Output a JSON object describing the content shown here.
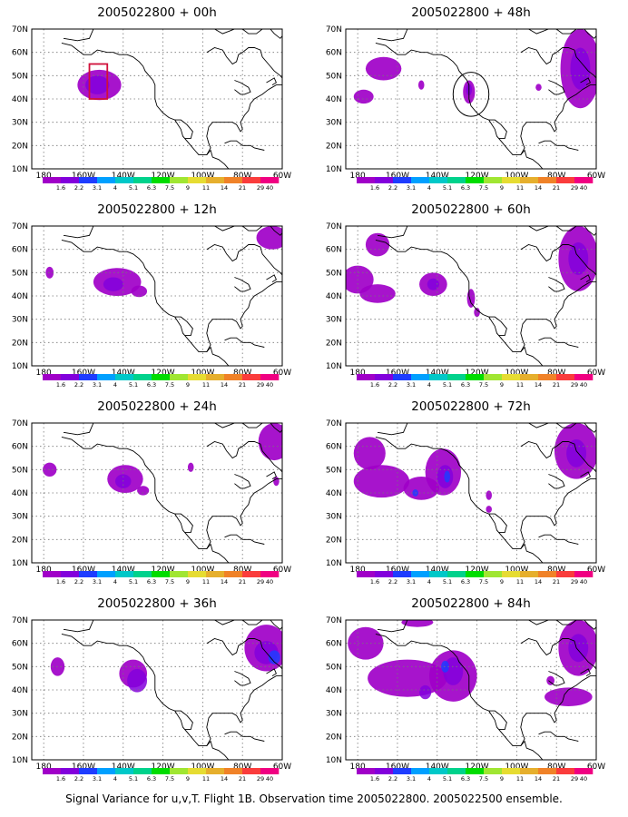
{
  "figure": {
    "caption": "Signal Variance for u,v,T. Flight 1B. Observation time 2005022800. 2005022500 ensemble."
  },
  "axes": {
    "lon_labels": [
      "180",
      "160W",
      "140W",
      "120W",
      "100W",
      "80W",
      "60W"
    ],
    "lon_values": [
      180,
      200,
      220,
      240,
      260,
      280,
      300
    ],
    "lat_labels": [
      "10N",
      "20N",
      "30N",
      "40N",
      "50N",
      "60N",
      "70N"
    ],
    "lat_values": [
      10,
      20,
      30,
      40,
      50,
      60,
      70
    ],
    "lon_range": [
      174,
      300
    ],
    "lat_range": [
      10,
      70
    ],
    "grid": true,
    "grid_style": "dotted"
  },
  "colorbar": {
    "levels": [
      "1.6",
      "2.2",
      "3.1",
      "4",
      "5.1",
      "6.3",
      "7.5",
      "9",
      "11",
      "14",
      "21",
      "29",
      "40"
    ],
    "colors": [
      "#a000c8",
      "#8200dc",
      "#1e3cff",
      "#00a0ff",
      "#00c8c8",
      "#00d28c",
      "#00dc00",
      "#a0e632",
      "#e6dc32",
      "#e6af2d",
      "#f08228",
      "#fa3c3c",
      "#f00082"
    ]
  },
  "panels": [
    {
      "title": "2005022800 + 00h",
      "col": 0,
      "row": 0,
      "blobs": [
        {
          "lon": 208,
          "lat": 46,
          "rx": 11,
          "ry": 6.5,
          "c": 0
        },
        {
          "lon": 207,
          "lat": 46,
          "rx": 6,
          "ry": 4,
          "c": 1
        }
      ],
      "marks": [
        {
          "type": "box",
          "lon0": 203,
          "lat0": 40,
          "lon1": 212,
          "lat1": 55
        }
      ]
    },
    {
      "title": "2005022800 + 12h",
      "col": 0,
      "row": 1,
      "blobs": [
        {
          "lon": 183,
          "lat": 50,
          "rx": 2,
          "ry": 2.5,
          "c": 0
        },
        {
          "lon": 217,
          "lat": 46,
          "rx": 12,
          "ry": 6,
          "c": 0
        },
        {
          "lon": 215,
          "lat": 45,
          "rx": 5,
          "ry": 3,
          "c": 1
        },
        {
          "lon": 228,
          "lat": 42,
          "rx": 4,
          "ry": 2.5,
          "c": 0
        },
        {
          "lon": 295,
          "lat": 65,
          "rx": 8,
          "ry": 5,
          "c": 0
        }
      ],
      "marks": []
    },
    {
      "title": "2005022800 + 24h",
      "col": 0,
      "row": 2,
      "blobs": [
        {
          "lon": 183,
          "lat": 50,
          "rx": 3.5,
          "ry": 3,
          "c": 0
        },
        {
          "lon": 221,
          "lat": 46,
          "rx": 9,
          "ry": 6,
          "c": 0
        },
        {
          "lon": 220,
          "lat": 45,
          "rx": 4,
          "ry": 3,
          "c": 1
        },
        {
          "lon": 230,
          "lat": 41,
          "rx": 3,
          "ry": 2,
          "c": 0
        },
        {
          "lon": 254,
          "lat": 51,
          "rx": 1.5,
          "ry": 2,
          "c": 0
        },
        {
          "lon": 296,
          "lat": 62,
          "rx": 8,
          "ry": 8,
          "c": 0
        },
        {
          "lon": 297,
          "lat": 45,
          "rx": 1.5,
          "ry": 2,
          "c": 0
        }
      ],
      "marks": []
    },
    {
      "title": "2005022800 + 36h",
      "col": 0,
      "row": 3,
      "blobs": [
        {
          "lon": 187,
          "lat": 50,
          "rx": 3.5,
          "ry": 4,
          "c": 0
        },
        {
          "lon": 225,
          "lat": 47,
          "rx": 7,
          "ry": 6,
          "c": 0
        },
        {
          "lon": 227,
          "lat": 44,
          "rx": 5,
          "ry": 5,
          "c": 1
        },
        {
          "lon": 292,
          "lat": 58,
          "rx": 11,
          "ry": 10,
          "c": 0
        },
        {
          "lon": 292,
          "lat": 56,
          "rx": 6,
          "ry": 5,
          "c": 1
        },
        {
          "lon": 296,
          "lat": 54,
          "rx": 3,
          "ry": 3,
          "c": 2
        }
      ],
      "marks": []
    },
    {
      "title": "2005022800 + 48h",
      "col": 1,
      "row": 0,
      "blobs": [
        {
          "lon": 183,
          "lat": 41,
          "rx": 5,
          "ry": 3,
          "c": 0
        },
        {
          "lon": 193,
          "lat": 53,
          "rx": 9,
          "ry": 5,
          "c": 0
        },
        {
          "lon": 212,
          "lat": 46,
          "rx": 1.5,
          "ry": 2,
          "c": 0
        },
        {
          "lon": 236,
          "lat": 43,
          "rx": 3,
          "ry": 5,
          "c": 0
        },
        {
          "lon": 236,
          "lat": 44,
          "rx": 1.5,
          "ry": 2.5,
          "c": 1
        },
        {
          "lon": 271,
          "lat": 45,
          "rx": 1.5,
          "ry": 1.5,
          "c": 0
        },
        {
          "lon": 292,
          "lat": 53,
          "rx": 10,
          "ry": 17,
          "c": 0
        },
        {
          "lon": 292,
          "lat": 53,
          "rx": 5,
          "ry": 9,
          "c": 1
        }
      ],
      "marks": [
        {
          "type": "circle",
          "lon": 237,
          "lat": 42,
          "r": 9
        }
      ]
    },
    {
      "title": "2005022800 + 60h",
      "col": 1,
      "row": 1,
      "blobs": [
        {
          "lon": 190,
          "lat": 62,
          "rx": 6,
          "ry": 5,
          "c": 0
        },
        {
          "lon": 180,
          "lat": 47,
          "rx": 8,
          "ry": 6,
          "c": 0
        },
        {
          "lon": 190,
          "lat": 41,
          "rx": 9,
          "ry": 4,
          "c": 0
        },
        {
          "lon": 218,
          "lat": 45,
          "rx": 7,
          "ry": 5,
          "c": 0
        },
        {
          "lon": 218,
          "lat": 45,
          "rx": 3,
          "ry": 2.5,
          "c": 1
        },
        {
          "lon": 237,
          "lat": 39,
          "rx": 2,
          "ry": 4,
          "c": 0
        },
        {
          "lon": 240,
          "lat": 33,
          "rx": 1.5,
          "ry": 2,
          "c": 0
        },
        {
          "lon": 291,
          "lat": 56,
          "rx": 10,
          "ry": 14,
          "c": 0
        },
        {
          "lon": 291,
          "lat": 56,
          "rx": 5,
          "ry": 7,
          "c": 1
        }
      ],
      "marks": []
    },
    {
      "title": "2005022800 + 72h",
      "col": 1,
      "row": 2,
      "blobs": [
        {
          "lon": 186,
          "lat": 57,
          "rx": 8,
          "ry": 7,
          "c": 0
        },
        {
          "lon": 192,
          "lat": 45,
          "rx": 14,
          "ry": 7,
          "c": 0
        },
        {
          "lon": 212,
          "lat": 42,
          "rx": 9,
          "ry": 5,
          "c": 0
        },
        {
          "lon": 223,
          "lat": 49,
          "rx": 9,
          "ry": 10,
          "c": 0
        },
        {
          "lon": 224,
          "lat": 47,
          "rx": 4,
          "ry": 5,
          "c": 1
        },
        {
          "lon": 225,
          "lat": 47,
          "rx": 1.5,
          "ry": 2.5,
          "c": 2
        },
        {
          "lon": 209,
          "lat": 40,
          "rx": 1.5,
          "ry": 1.5,
          "c": 2
        },
        {
          "lon": 246,
          "lat": 39,
          "rx": 1.5,
          "ry": 2,
          "c": 0
        },
        {
          "lon": 246,
          "lat": 33,
          "rx": 1.5,
          "ry": 1.5,
          "c": 0
        },
        {
          "lon": 290,
          "lat": 58,
          "rx": 11,
          "ry": 12,
          "c": 0
        },
        {
          "lon": 290,
          "lat": 57,
          "rx": 5,
          "ry": 6,
          "c": 1
        }
      ],
      "marks": []
    },
    {
      "title": "2005022800 + 84h",
      "col": 1,
      "row": 3,
      "blobs": [
        {
          "lon": 184,
          "lat": 60,
          "rx": 9,
          "ry": 7,
          "c": 0
        },
        {
          "lon": 205,
          "lat": 45,
          "rx": 20,
          "ry": 8,
          "c": 0
        },
        {
          "lon": 228,
          "lat": 46,
          "rx": 12,
          "ry": 11,
          "c": 0
        },
        {
          "lon": 228,
          "lat": 48,
          "rx": 5,
          "ry": 6,
          "c": 1
        },
        {
          "lon": 224,
          "lat": 50,
          "rx": 2,
          "ry": 2.5,
          "c": 2
        },
        {
          "lon": 214,
          "lat": 39,
          "rx": 3,
          "ry": 3,
          "c": 1
        },
        {
          "lon": 210,
          "lat": 69,
          "rx": 8,
          "ry": 2,
          "c": 0
        },
        {
          "lon": 291,
          "lat": 58,
          "rx": 10,
          "ry": 12,
          "c": 0
        },
        {
          "lon": 291,
          "lat": 58,
          "rx": 5,
          "ry": 6,
          "c": 1
        },
        {
          "lon": 277,
          "lat": 44,
          "rx": 2,
          "ry": 2,
          "c": 0
        },
        {
          "lon": 286,
          "lat": 37,
          "rx": 12,
          "ry": 4,
          "c": 0
        }
      ],
      "marks": []
    }
  ],
  "coastlines": [
    [
      [
        190,
        66
      ],
      [
        197,
        65
      ],
      [
        203,
        66
      ],
      [
        205,
        70
      ]
    ],
    [
      [
        189,
        64
      ],
      [
        194,
        63
      ],
      [
        197,
        61
      ],
      [
        200,
        59
      ],
      [
        204,
        59
      ],
      [
        207,
        61
      ],
      [
        212,
        60
      ],
      [
        215,
        60
      ],
      [
        218,
        59
      ],
      [
        222,
        59
      ],
      [
        225,
        58
      ],
      [
        228,
        56
      ],
      [
        230,
        54
      ],
      [
        231,
        52
      ],
      [
        233,
        50
      ],
      [
        235,
        48
      ],
      [
        236,
        46
      ],
      [
        236,
        43
      ],
      [
        236,
        40
      ],
      [
        237,
        37
      ],
      [
        240,
        34
      ],
      [
        243,
        32
      ],
      [
        246,
        31
      ],
      [
        249,
        27
      ],
      [
        250,
        24
      ],
      [
        252,
        22
      ],
      [
        254,
        20
      ],
      [
        256,
        18
      ],
      [
        258,
        16
      ],
      [
        262,
        16
      ],
      [
        264,
        18
      ],
      [
        265,
        15
      ],
      [
        268,
        14
      ],
      [
        271,
        12
      ],
      [
        273,
        10
      ]
    ],
    [
      [
        246,
        31
      ],
      [
        249,
        31
      ],
      [
        252,
        29
      ],
      [
        255,
        26
      ],
      [
        254,
        23
      ],
      [
        251,
        23
      ]
    ],
    [
      [
        262,
        16
      ],
      [
        264,
        19
      ],
      [
        263,
        21
      ],
      [
        262,
        24
      ],
      [
        263,
        28
      ],
      [
        265,
        30
      ],
      [
        269,
        30
      ],
      [
        272,
        30
      ],
      [
        275,
        30
      ],
      [
        277,
        29
      ],
      [
        279,
        26
      ],
      [
        280,
        27
      ],
      [
        279,
        30
      ],
      [
        281,
        33
      ],
      [
        283,
        35
      ],
      [
        284,
        38
      ],
      [
        286,
        40
      ],
      [
        288,
        41
      ],
      [
        290,
        42
      ],
      [
        293,
        44
      ],
      [
        295,
        45
      ],
      [
        297,
        46
      ],
      [
        300,
        46
      ]
    ],
    [
      [
        271,
        21
      ],
      [
        274,
        22
      ],
      [
        277,
        22
      ],
      [
        280,
        20
      ],
      [
        284,
        20
      ],
      [
        286,
        19
      ],
      [
        291,
        18
      ]
    ],
    [
      [
        262,
        60
      ],
      [
        266,
        62
      ],
      [
        270,
        61
      ],
      [
        272,
        58
      ],
      [
        275,
        55
      ],
      [
        277,
        56
      ],
      [
        278,
        59
      ],
      [
        280,
        60
      ],
      [
        283,
        62
      ],
      [
        286,
        62
      ],
      [
        289,
        61
      ],
      [
        290,
        58
      ],
      [
        293,
        55
      ],
      [
        296,
        52
      ],
      [
        299,
        50
      ],
      [
        300,
        49
      ]
    ],
    [
      [
        276,
        48
      ],
      [
        279,
        47
      ],
      [
        283,
        45
      ],
      [
        284,
        43
      ],
      [
        281,
        42
      ],
      [
        279,
        42
      ],
      [
        276,
        44
      ]
    ],
    [
      [
        292,
        47
      ],
      [
        294,
        48
      ],
      [
        296,
        49
      ],
      [
        297,
        47
      ],
      [
        295,
        46
      ]
    ],
    [
      [
        266,
        70
      ],
      [
        270,
        68
      ],
      [
        273,
        69
      ],
      [
        276,
        70
      ]
    ],
    [
      [
        280,
        70
      ],
      [
        283,
        68
      ],
      [
        287,
        68
      ],
      [
        290,
        70
      ]
    ],
    [
      [
        294,
        70
      ],
      [
        296,
        68
      ],
      [
        299,
        66
      ],
      [
        300,
        67
      ]
    ]
  ]
}
